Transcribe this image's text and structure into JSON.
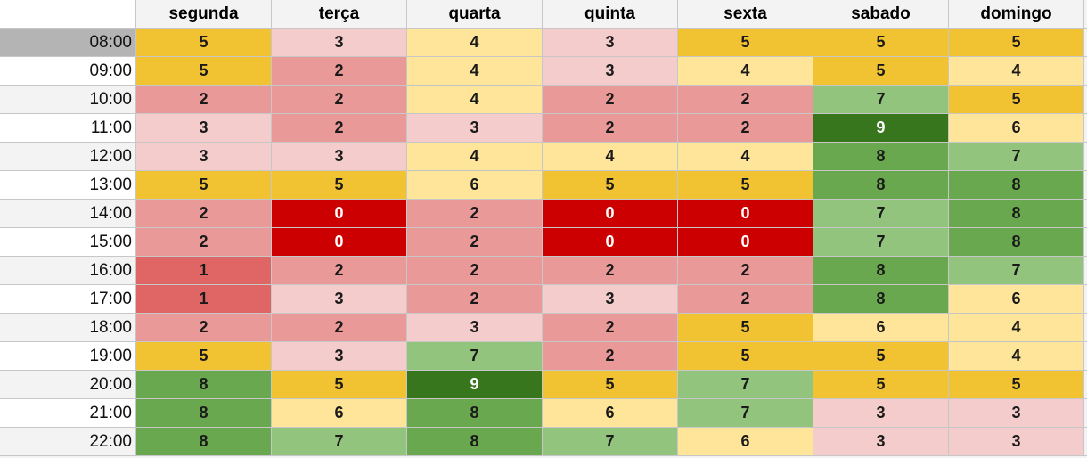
{
  "colors": {
    "c0": "#cc0000",
    "c1": "#e06666",
    "c2": "#ea9999",
    "c3": "#f4cccc",
    "c4": "#ffe599",
    "c5": "#f1c232",
    "c6": "#ffe599",
    "c7": "#93c47d",
    "c8": "#6aa84f",
    "c9": "#38761d"
  },
  "header": {
    "days": [
      "segunda",
      "terça",
      "quarta",
      "quinta",
      "sexta",
      "sabado",
      "domingo"
    ]
  },
  "rows": [
    {
      "time": "08:00",
      "values": [
        "5",
        "3",
        "4",
        "3",
        "5",
        "5",
        "5"
      ]
    },
    {
      "time": "09:00",
      "values": [
        "5",
        "2",
        "4",
        "3",
        "4",
        "5",
        "4"
      ]
    },
    {
      "time": "10:00",
      "values": [
        "2",
        "2",
        "4",
        "2",
        "2",
        "7",
        "5"
      ]
    },
    {
      "time": "11:00",
      "values": [
        "3",
        "2",
        "3",
        "2",
        "2",
        "9",
        "6"
      ]
    },
    {
      "time": "12:00",
      "values": [
        "3",
        "3",
        "4",
        "4",
        "4",
        "8",
        "7"
      ]
    },
    {
      "time": "13:00",
      "values": [
        "5",
        "5",
        "6",
        "5",
        "5",
        "8",
        "8"
      ]
    },
    {
      "time": "14:00",
      "values": [
        "2",
        "0",
        "2",
        "0",
        "0",
        "7",
        "8"
      ]
    },
    {
      "time": "15:00",
      "values": [
        "2",
        "0",
        "2",
        "0",
        "0",
        "7",
        "8"
      ]
    },
    {
      "time": "16:00",
      "values": [
        "1",
        "2",
        "2",
        "2",
        "2",
        "8",
        "7"
      ]
    },
    {
      "time": "17:00",
      "values": [
        "1",
        "3",
        "2",
        "3",
        "2",
        "8",
        "6"
      ]
    },
    {
      "time": "18:00",
      "values": [
        "2",
        "2",
        "3",
        "2",
        "5",
        "6",
        "4"
      ]
    },
    {
      "time": "19:00",
      "values": [
        "5",
        "3",
        "7",
        "2",
        "5",
        "5",
        "4"
      ]
    },
    {
      "time": "20:00",
      "values": [
        "8",
        "5",
        "9",
        "5",
        "7",
        "5",
        "5"
      ]
    },
    {
      "time": "21:00",
      "values": [
        "8",
        "6",
        "8",
        "6",
        "7",
        "3",
        "3"
      ]
    },
    {
      "time": "22:00",
      "values": [
        "8",
        "7",
        "8",
        "7",
        "6",
        "3",
        "3"
      ]
    }
  ]
}
